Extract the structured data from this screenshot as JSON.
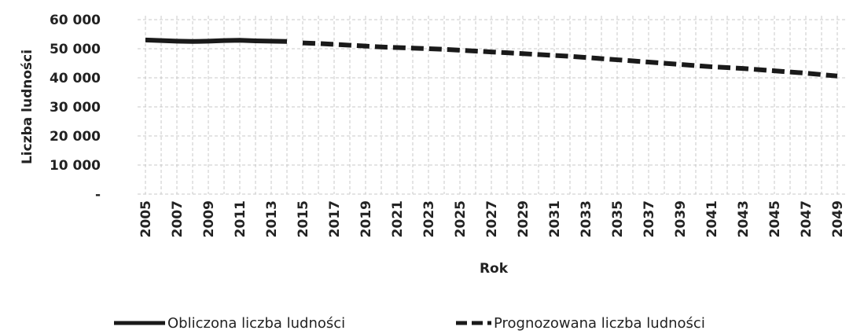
{
  "chart_data": {
    "type": "line",
    "x_label": "Rok",
    "y_label": "Liczba ludności",
    "x": [
      2005,
      2006,
      2007,
      2008,
      2009,
      2010,
      2011,
      2012,
      2013,
      2014,
      2015,
      2016,
      2017,
      2018,
      2019,
      2020,
      2021,
      2022,
      2023,
      2024,
      2025,
      2026,
      2027,
      2028,
      2029,
      2030,
      2031,
      2032,
      2033,
      2034,
      2035,
      2036,
      2037,
      2038,
      2039,
      2040,
      2041,
      2042,
      2043,
      2044,
      2045,
      2046,
      2047,
      2048,
      2049
    ],
    "xlim": [
      2004.5,
      2049.5
    ],
    "xticks": [
      2005,
      2007,
      2009,
      2011,
      2013,
      2015,
      2017,
      2019,
      2021,
      2023,
      2025,
      2027,
      2029,
      2031,
      2033,
      2035,
      2037,
      2039,
      2041,
      2043,
      2045,
      2047,
      2049
    ],
    "ylim": [
      0,
      60000
    ],
    "yticks": [
      {
        "value": 0,
        "label": "-"
      },
      {
        "value": 10000,
        "label": "10 000"
      },
      {
        "value": 20000,
        "label": "20 000"
      },
      {
        "value": 30000,
        "label": "30 000"
      },
      {
        "value": 40000,
        "label": "40 000"
      },
      {
        "value": 50000,
        "label": "50 000"
      },
      {
        "value": 60000,
        "label": "60 000"
      }
    ],
    "grid": true,
    "legend": "bottom",
    "series": [
      {
        "name": "Obliczona liczba ludności",
        "color": "#1a1a1a",
        "dash": false,
        "values": [
          53000,
          52800,
          52600,
          52500,
          52600,
          52800,
          52900,
          52700,
          52600,
          52500,
          null,
          null,
          null,
          null,
          null,
          null,
          null,
          null,
          null,
          null,
          null,
          null,
          null,
          null,
          null,
          null,
          null,
          null,
          null,
          null,
          null,
          null,
          null,
          null,
          null,
          null,
          null,
          null,
          null,
          null,
          null,
          null,
          null,
          null,
          null
        ]
      },
      {
        "name": "Prognozowana liczba ludności",
        "color": "#1a1a1a",
        "dash": true,
        "values": [
          null,
          null,
          null,
          null,
          null,
          null,
          null,
          null,
          null,
          null,
          52000,
          51800,
          51500,
          51200,
          50900,
          50600,
          50400,
          50200,
          50000,
          49800,
          49500,
          49200,
          48900,
          48600,
          48300,
          48000,
          47700,
          47400,
          47000,
          46600,
          46200,
          45800,
          45400,
          45000,
          44600,
          44200,
          43800,
          43500,
          43200,
          42800,
          42400,
          42000,
          41600,
          41100,
          40600
        ]
      }
    ]
  }
}
